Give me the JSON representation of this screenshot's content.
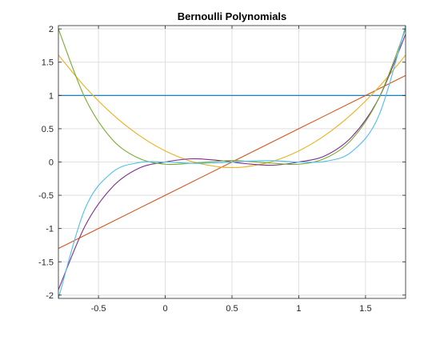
{
  "chart_data": {
    "type": "line",
    "title": "Bernoulli Polynomials",
    "xlabel": "",
    "ylabel": "",
    "xlim": [
      -0.8,
      1.8
    ],
    "ylim": [
      -2.05,
      2.05
    ],
    "xticks": [
      -0.5,
      0,
      0.5,
      1,
      1.5
    ],
    "xtick_labels": [
      "-0.5",
      "0",
      "0.5",
      "1",
      "1.5"
    ],
    "yticks": [
      -2,
      -1.5,
      -1,
      -0.5,
      0,
      0.5,
      1,
      1.5,
      2
    ],
    "ytick_labels": [
      "-2",
      "-1.5",
      "-1",
      "-0.5",
      "0",
      "0.5",
      "1",
      "1.5",
      "2"
    ],
    "grid": true,
    "series": [
      {
        "color": "#0072BD",
        "x": [
          -0.8,
          -0.5,
          0,
          0.5,
          1,
          1.5,
          1.8
        ],
        "y": [
          1,
          1,
          1,
          1,
          1,
          1,
          1
        ]
      },
      {
        "color": "#D95319",
        "x": [
          -0.8,
          -0.5,
          0,
          0.5,
          1,
          1.5,
          1.8
        ],
        "y": [
          -1.3,
          -1,
          -0.5,
          0,
          0.5,
          1,
          1.3
        ]
      },
      {
        "color": "#EDB120",
        "x": [
          -0.8,
          -0.6,
          -0.4,
          -0.2,
          0,
          0.2,
          0.4,
          0.5,
          0.6,
          0.8,
          1,
          1.2,
          1.4,
          1.6,
          1.8
        ],
        "y": [
          1.607,
          1.127,
          0.727,
          0.407,
          0.167,
          0.007,
          -0.073,
          -0.083,
          -0.073,
          0.007,
          0.167,
          0.407,
          0.727,
          1.127,
          1.607
        ]
      },
      {
        "color": "#7E2F8E",
        "x": [
          -0.8,
          -0.6,
          -0.4,
          -0.2,
          0,
          0.2,
          0.4,
          0.5,
          0.6,
          0.8,
          1,
          1.2,
          1.4,
          1.6,
          1.8
        ],
        "y": [
          -1.92,
          -0.96,
          -0.384,
          -0.096,
          0,
          0.048,
          0.024,
          0,
          -0.024,
          -0.048,
          0,
          0.096,
          0.384,
          0.96,
          1.92
        ]
      },
      {
        "color": "#77AC30",
        "x": [
          -0.8,
          -0.6,
          -0.4,
          -0.2,
          0,
          0.2,
          0.4,
          0.5,
          0.6,
          0.8,
          1,
          1.2,
          1.4,
          1.6,
          1.8
        ],
        "y": [
          2.0,
          0.96,
          0.346,
          0.058,
          -0.033,
          -0.018,
          0.012,
          0.022,
          0.012,
          -0.018,
          -0.033,
          0.058,
          0.346,
          0.96,
          2.0
        ]
      },
      {
        "color": "#4DBEEE",
        "x": [
          -0.8,
          -0.6,
          -0.4,
          -0.2,
          0,
          0.2,
          0.4,
          0.5,
          0.6,
          0.8,
          1,
          1.2,
          1.4,
          1.6,
          1.8
        ],
        "y": [
          -2.05,
          -0.7,
          -0.16,
          -0.01,
          0,
          -0.02,
          -0.012,
          0,
          0.012,
          0.02,
          0,
          0.01,
          0.16,
          0.7,
          2.05
        ]
      }
    ]
  }
}
